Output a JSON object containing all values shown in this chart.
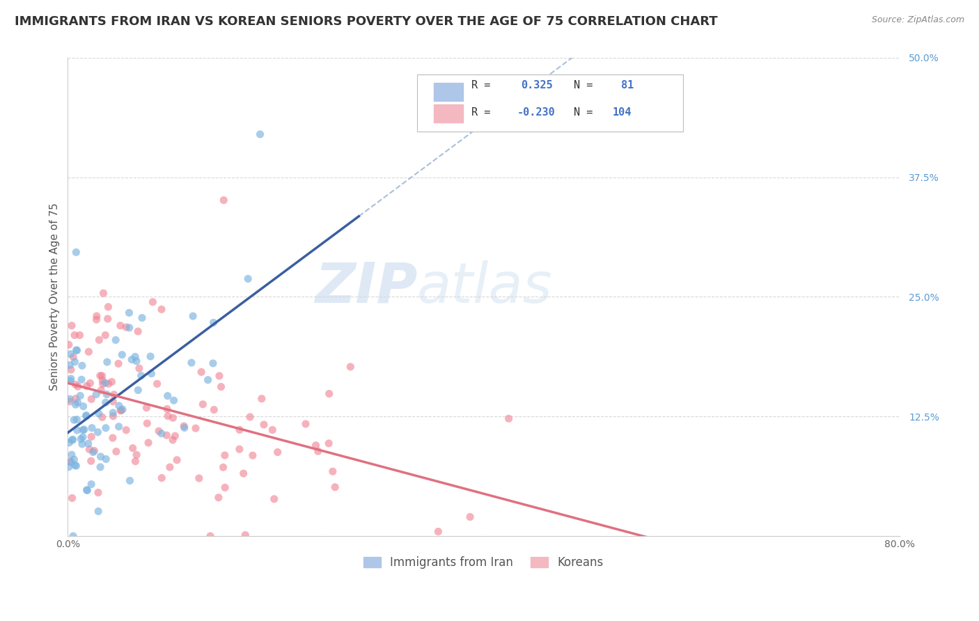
{
  "title": "IMMIGRANTS FROM IRAN VS KOREAN SENIORS POVERTY OVER THE AGE OF 75 CORRELATION CHART",
  "source": "Source: ZipAtlas.com",
  "ylabel": "Seniors Poverty Over the Age of 75",
  "xlim": [
    0.0,
    0.8
  ],
  "ylim": [
    0.0,
    0.5
  ],
  "yticks": [
    0.0,
    0.125,
    0.25,
    0.375,
    0.5
  ],
  "ytick_labels": [
    "",
    "12.5%",
    "25.0%",
    "37.5%",
    "50.0%"
  ],
  "xticks": [
    0.0,
    0.16,
    0.32,
    0.48,
    0.64,
    0.8
  ],
  "xtick_labels": [
    "0.0%",
    "",
    "",
    "",
    "",
    "80.0%"
  ],
  "legend_entry1": {
    "color": "#aec6e8",
    "R": "0.325",
    "N": "81",
    "label": "Immigrants from Iran"
  },
  "legend_entry2": {
    "color": "#f4b8c1",
    "R": "-0.230",
    "N": "104",
    "label": "Koreans"
  },
  "iran_color": "#7ab3e0",
  "korea_color": "#f08090",
  "iran_line_color": "#3a5fa0",
  "korea_line_color": "#e07080",
  "dash_line_color": "#a0b8d8",
  "background_color": "#ffffff",
  "grid_color": "#d8d8d8",
  "title_fontsize": 13,
  "axis_label_fontsize": 11,
  "tick_fontsize": 10,
  "legend_fontsize": 12,
  "watermark_zip": "ZIP",
  "watermark_atlas": "atlas"
}
